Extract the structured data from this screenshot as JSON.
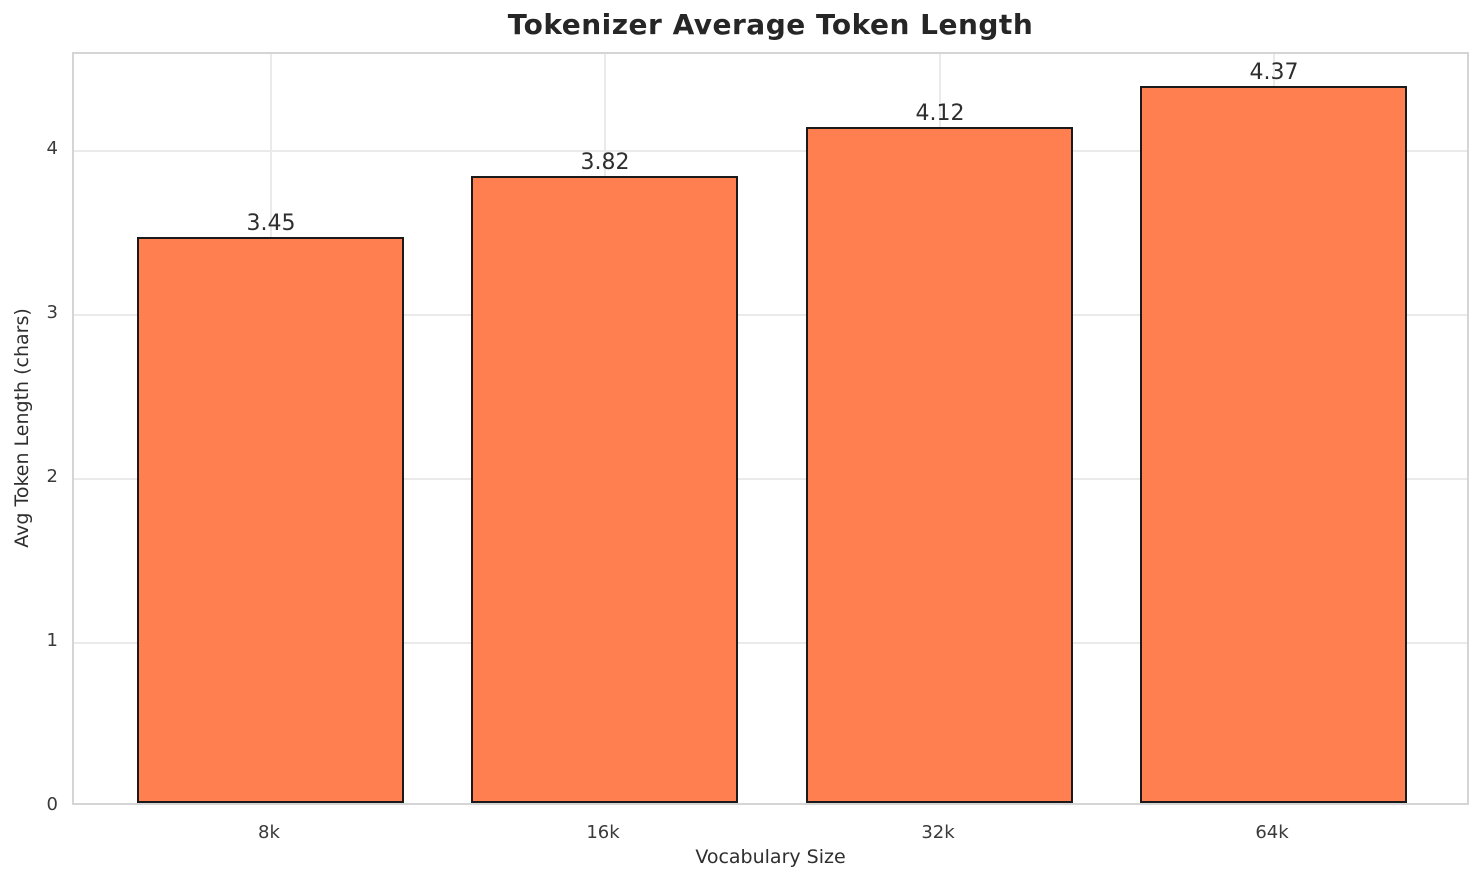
{
  "figure": {
    "background": "#ffffff"
  },
  "chart_data": {
    "type": "bar",
    "title": "Tokenizer Average Token Length",
    "xlabel": "Vocabulary Size",
    "ylabel": "Avg Token Length (chars)",
    "categories": [
      "8k",
      "16k",
      "32k",
      "64k"
    ],
    "values": [
      3.45,
      3.82,
      4.12,
      4.37
    ],
    "value_labels": [
      "3.45",
      "3.82",
      "4.12",
      "4.37"
    ],
    "yticks": [
      0,
      1,
      2,
      3,
      4
    ],
    "ylim": [
      0,
      4.59
    ],
    "grid": true,
    "legend_position": "none",
    "colors": {
      "bar_fill": "#ff7f50",
      "bar_edge": "#1a1a1a",
      "grid_line": "#eaeaea",
      "spine": "#d5d5d5",
      "title_text": "#262626",
      "label_text": "#2e2e2e",
      "tick_text": "#3a3a3a"
    }
  }
}
